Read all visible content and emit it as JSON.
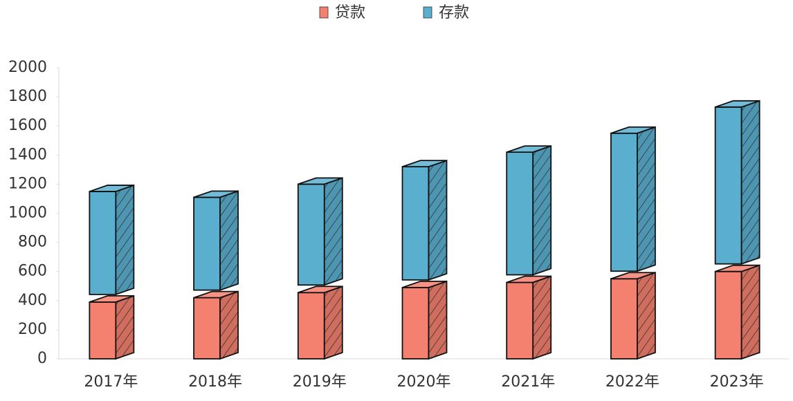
{
  "chart_data": {
    "type": "bar",
    "stacked": true,
    "categories": [
      "2017年",
      "2018年",
      "2019年",
      "2020年",
      "2021年",
      "2022年",
      "2023年"
    ],
    "series": [
      {
        "name": "贷款",
        "color": "#f4806f",
        "values": [
          390,
          420,
          455,
          490,
          525,
          550,
          600
        ]
      },
      {
        "name": "存款",
        "color": "#5aafcf",
        "values": [
          760,
          690,
          745,
          830,
          895,
          1000,
          1130
        ]
      }
    ],
    "ylim": [
      0,
      2000
    ],
    "yticks": [
      0,
      200,
      400,
      600,
      800,
      1000,
      1200,
      1400,
      1600,
      1800,
      2000
    ]
  }
}
